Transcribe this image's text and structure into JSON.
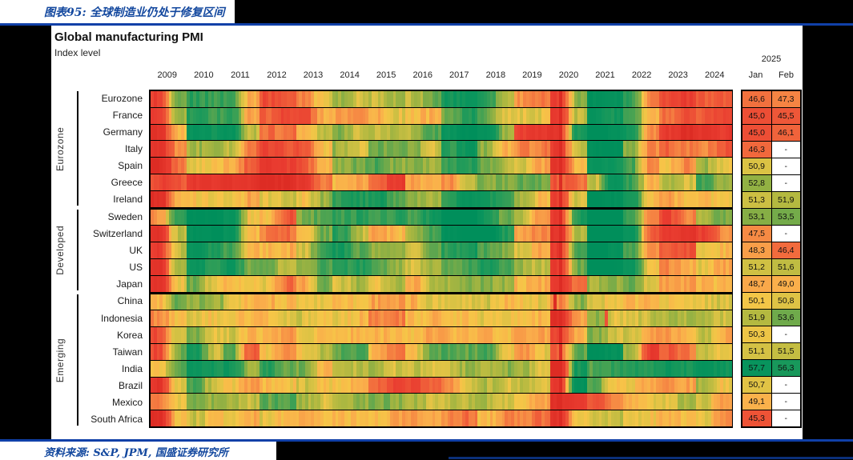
{
  "page": {
    "title": "图表95: 全球制造业仍处于修复区间",
    "source": "资料来源: S&P, JPM, 国盛证券研究所"
  },
  "chart_data": {
    "type": "heatmap",
    "title": "Global manufacturing PMI",
    "subtitle": "Index level",
    "legend_note": "color scale: red ≈ PMI 43 and below, yellow ≈ 50, dark green ≈ 57 and above",
    "years": [
      "2009",
      "2010",
      "2011",
      "2012",
      "2013",
      "2014",
      "2015",
      "2016",
      "2017",
      "2018",
      "2019",
      "2020",
      "2021",
      "2022",
      "2023",
      "2024"
    ],
    "months_per_year": 12,
    "header_2025": {
      "year": "2025",
      "jan": "Jan",
      "feb": "Feb"
    },
    "groups": [
      {
        "label": "Eurozone",
        "row_start": 0,
        "row_end": 6
      },
      {
        "label": "Developed",
        "row_start": 7,
        "row_end": 11
      },
      {
        "label": "Emerging",
        "row_start": 12,
        "row_end": 19
      }
    ],
    "color_scale": {
      "stops": [
        [
          41,
          "#DD2C24"
        ],
        [
          44,
          "#E93C30"
        ],
        [
          46,
          "#F0603A"
        ],
        [
          47.5,
          "#F68A44"
        ],
        [
          49,
          "#FAAF4B"
        ],
        [
          50,
          "#F6C647"
        ],
        [
          51,
          "#D8C244"
        ],
        [
          52,
          "#B0B840"
        ],
        [
          53,
          "#8BAF44"
        ],
        [
          54,
          "#5CA64F"
        ],
        [
          55.5,
          "#279C59"
        ],
        [
          57,
          "#0B955D"
        ],
        [
          60,
          "#008F5B"
        ]
      ]
    },
    "special_dips": [
      {
        "row": "*",
        "except": "China",
        "month_index": 135,
        "delta": -4.5
      },
      {
        "row": "China",
        "month_index": 133,
        "delta": -7
      },
      {
        "row": "Indonesia",
        "month_index": 150,
        "delta": -7
      },
      {
        "row": "India",
        "month_index": 135,
        "delta": -8
      }
    ],
    "rows": [
      {
        "name": "Eurozone",
        "group": "Eurozone",
        "half_year_values": [
          44,
          53,
          55.5,
          55,
          55,
          49,
          45,
          45.5,
          47.5,
          50.5,
          52.5,
          51,
          51.5,
          52,
          51.8,
          53.5,
          56.5,
          57.5,
          56,
          52,
          48,
          46.5,
          44,
          53,
          59.5,
          58.5,
          55.5,
          47.5,
          44.8,
          43.8,
          46,
          45.5
        ],
        "jan_2025": "46,6",
        "feb_2025": "47,3"
      },
      {
        "name": "France",
        "group": "Eurozone",
        "half_year_values": [
          43.5,
          52.5,
          55.5,
          55,
          55.5,
          48.5,
          46,
          44.8,
          44.5,
          49,
          48.5,
          48,
          49,
          50.5,
          49.5,
          49,
          53.5,
          56,
          54,
          51,
          50.5,
          50.5,
          43.5,
          51.5,
          58,
          56.5,
          55,
          49,
          46.5,
          44.5,
          45.5,
          44.5
        ],
        "jan_2025": "45,0",
        "feb_2025": "45,5"
      },
      {
        "name": "Germany",
        "group": "Eurozone",
        "half_year_values": [
          42.5,
          49.5,
          58,
          57,
          58,
          51.5,
          46.5,
          46.8,
          49,
          51.5,
          53,
          51.5,
          51.5,
          52,
          52,
          54.5,
          57.5,
          60,
          58.5,
          52.5,
          44.5,
          43,
          43,
          56.5,
          62,
          58.5,
          56.5,
          47.5,
          43.5,
          41.5,
          43,
          43.5
        ],
        "jan_2025": "45,0",
        "feb_2025": "46,1"
      },
      {
        "name": "Italy",
        "group": "Eurozone",
        "half_year_values": [
          42.5,
          47.5,
          52.5,
          53,
          52,
          46.5,
          44.5,
          45.5,
          45.5,
          50,
          52.5,
          50.5,
          53.5,
          54,
          53,
          51,
          55.5,
          57.5,
          53,
          49,
          47.5,
          47,
          43.5,
          52,
          59.5,
          60,
          53,
          47.5,
          46,
          47,
          47.5,
          45.5
        ],
        "jan_2025": "46,3",
        "feb_2025": "-"
      },
      {
        "name": "Spain",
        "group": "Eurozone",
        "half_year_values": [
          41,
          46.5,
          50.5,
          50,
          49,
          45.5,
          43.5,
          44,
          45.5,
          49.5,
          52.5,
          53.5,
          54.5,
          53,
          53.5,
          52.5,
          55,
          55.5,
          54,
          52,
          51,
          48.5,
          43,
          50,
          57.5,
          57,
          54.5,
          47.5,
          49.5,
          47.5,
          52.5,
          50.5
        ],
        "jan_2025": "50,9",
        "feb_2025": "-"
      },
      {
        "name": "Greece",
        "group": "Eurozone",
        "half_year_values": [
          44.5,
          45.5,
          43.5,
          43,
          43,
          42.5,
          40.5,
          41.5,
          43,
          47,
          49.5,
          48.5,
          46.5,
          43.5,
          48.5,
          49,
          47.5,
          52,
          53,
          53.5,
          54,
          53.5,
          45.5,
          46.5,
          51.5,
          57.5,
          55,
          49.5,
          52,
          51,
          54.5,
          52.5
        ],
        "jan_2025": "52,8",
        "feb_2025": "-"
      },
      {
        "name": "Ireland",
        "group": "Eurozone",
        "half_year_values": [
          41.5,
          49,
          50,
          50.5,
          50.5,
          48.5,
          50.5,
          51.5,
          50,
          52.5,
          55.5,
          56,
          56.5,
          54.5,
          52.5,
          52,
          55.5,
          57.5,
          56.5,
          55,
          52.5,
          49.5,
          44,
          51,
          60,
          59,
          57,
          49.5,
          48.5,
          49.5,
          49.5,
          50.5
        ],
        "jan_2025": "51,3",
        "feb_2025": "51,9"
      },
      {
        "name": "Sweden",
        "group": "Developed",
        "half_year_values": [
          48,
          55.5,
          60,
          60,
          57.5,
          50,
          49.5,
          45.5,
          53,
          54.5,
          55,
          55.5,
          55,
          55.5,
          54.5,
          56.5,
          60.5,
          61,
          57,
          53.5,
          52,
          47.5,
          43.5,
          56,
          63,
          61,
          55.5,
          47.5,
          44.5,
          47.5,
          52.5,
          53.5
        ],
        "jan_2025": "53,1",
        "feb_2025": "53,5"
      },
      {
        "name": "Switzerland",
        "group": "Developed",
        "half_year_values": [
          42.5,
          51.5,
          59,
          60,
          57.5,
          49.5,
          47,
          46.5,
          50,
          53.5,
          55.5,
          51.5,
          48,
          49.5,
          52.5,
          54.5,
          59,
          61.5,
          61.5,
          56,
          48.5,
          47.5,
          42.5,
          52,
          64,
          62,
          57.5,
          46,
          44,
          43,
          44,
          47.5
        ],
        "jan_2025": "47,5",
        "feb_2025": "-"
      },
      {
        "name": "UK",
        "group": "Developed",
        "half_year_values": [
          43.5,
          51.5,
          57.5,
          56,
          55,
          49.5,
          49.5,
          49,
          51,
          55.5,
          56.5,
          54,
          53,
          52.5,
          51,
          54,
          55.5,
          56.5,
          54.5,
          53,
          51,
          48.5,
          43.5,
          54.5,
          61.5,
          58.5,
          55,
          47.5,
          46,
          45.5,
          51,
          49.5
        ],
        "jan_2025": "48,3",
        "feb_2025": "46,4"
      },
      {
        "name": "US",
        "group": "Developed",
        "half_year_values": [
          42.5,
          52.5,
          57.5,
          55.5,
          57,
          53.5,
          53.5,
          51.5,
          52.5,
          54.5,
          55.5,
          56,
          54.5,
          52.5,
          51,
          52.5,
          53.5,
          54.5,
          56,
          55,
          52.5,
          51.5,
          43.5,
          53.5,
          61,
          59.5,
          57,
          50,
          47.5,
          49,
          50.5,
          48.5
        ],
        "jan_2025": "51,2",
        "feb_2025": "51,6"
      },
      {
        "name": "Japan",
        "group": "Developed",
        "half_year_values": [
          42,
          50.5,
          53.5,
          50.5,
          49.5,
          50,
          50.5,
          46.5,
          48.5,
          53.5,
          51,
          52.5,
          50.5,
          52,
          48.5,
          51.5,
          52.5,
          53,
          53,
          52.5,
          49.5,
          48.8,
          44,
          46.5,
          52.5,
          53,
          54,
          50.5,
          48.5,
          48.5,
          49,
          49.5
        ],
        "jan_2025": "48,7",
        "feb_2025": "49,0"
      },
      {
        "name": "China",
        "group": "Emerging",
        "half_year_values": [
          49,
          54,
          53,
          52.5,
          51,
          49.5,
          49,
          49.5,
          50,
          50.5,
          49,
          50,
          48.5,
          48,
          49,
          51,
          50.5,
          51,
          51,
          49.5,
          50,
          50.5,
          47,
          53,
          51,
          50,
          49.5,
          49,
          50,
          50.5,
          50.5,
          51
        ],
        "jan_2025": "50,1",
        "feb_2025": "50,8"
      },
      {
        "name": "Indonesia",
        "group": "Emerging",
        "half_year_values": [
          47.5,
          50,
          50.5,
          50,
          50,
          49.5,
          49.5,
          50.5,
          51,
          50,
          50.5,
          49.5,
          47.5,
          47,
          49.5,
          49,
          50,
          49.5,
          50.5,
          50.5,
          50,
          49,
          41.5,
          48.5,
          53,
          50.5,
          51,
          51.5,
          52,
          52,
          52.5,
          51
        ],
        "jan_2025": "51,9",
        "feb_2025": "53,6"
      },
      {
        "name": "Korea",
        "group": "Emerging",
        "half_year_values": [
          45,
          51.5,
          53.5,
          50.5,
          51,
          49,
          49.5,
          47.5,
          50.5,
          49.5,
          49.5,
          49,
          49,
          49.5,
          49.5,
          48.5,
          49,
          49.5,
          49,
          49.5,
          48.5,
          48.5,
          44,
          49,
          53.5,
          51,
          51.5,
          48,
          48,
          49.5,
          51.5,
          49
        ],
        "jan_2025": "50,3",
        "feb_2025": "-"
      },
      {
        "name": "Taiwan",
        "group": "Emerging",
        "half_year_values": [
          44.5,
          53.5,
          56.5,
          51.5,
          54,
          45.5,
          50,
          47.5,
          50,
          52,
          54,
          54.5,
          49.5,
          46.5,
          50,
          53.5,
          54.5,
          54,
          55,
          50.5,
          47.5,
          50.5,
          45.5,
          54,
          60.5,
          58.5,
          52.5,
          43.5,
          45.5,
          47,
          51.5,
          50.5
        ],
        "jan_2025": "51,1",
        "feb_2025": "51,5"
      },
      {
        "name": "India",
        "group": "Emerging",
        "half_year_values": [
          49.5,
          54,
          57.5,
          56.5,
          57,
          52.5,
          55.5,
          54,
          53.5,
          49.5,
          51.5,
          52,
          52,
          51,
          51.5,
          50.5,
          51.5,
          52.5,
          52,
          53,
          52.5,
          51,
          41,
          56.5,
          54,
          55.5,
          55.5,
          56,
          57,
          56.5,
          58,
          57
        ],
        "jan_2025": "57,7",
        "feb_2025": "56,3"
      },
      {
        "name": "Brazil",
        "group": "Emerging",
        "half_year_values": [
          42.5,
          51,
          54.5,
          51,
          50,
          48,
          49.5,
          50,
          51,
          50,
          49.5,
          48.5,
          46.5,
          44.5,
          44.5,
          46,
          47.5,
          51.5,
          52,
          51,
          51.5,
          51,
          43.5,
          59,
          54,
          50,
          50,
          48.5,
          47.5,
          48.5,
          52.5,
          50
        ],
        "jan_2025": "50,7",
        "feb_2025": "-"
      },
      {
        "name": "Mexico",
        "group": "Emerging",
        "half_year_values": [
          46.5,
          50,
          54,
          52.5,
          52.5,
          51.5,
          54,
          54.5,
          52.5,
          51,
          52,
          53,
          53.5,
          53,
          52.5,
          51,
          51.5,
          52,
          52,
          51.5,
          50,
          48.5,
          41.5,
          43.5,
          45.5,
          47.5,
          49.5,
          50.5,
          51,
          52,
          51,
          48.5
        ],
        "jan_2025": "49,1",
        "feb_2025": "-"
      },
      {
        "name": "South Africa",
        "group": "Emerging",
        "half_year_values": [
          41.5,
          49.5,
          51.5,
          50,
          50.5,
          49,
          50.5,
          49.5,
          49,
          49.5,
          49.5,
          49.5,
          49.5,
          48.5,
          48,
          48.5,
          47.5,
          46.5,
          49.5,
          47.5,
          47.5,
          46.5,
          42.5,
          50.5,
          51,
          51.5,
          50.5,
          50,
          49,
          49.5,
          50.5,
          47.5
        ],
        "jan_2025": "45,3",
        "feb_2025": "-"
      }
    ]
  }
}
